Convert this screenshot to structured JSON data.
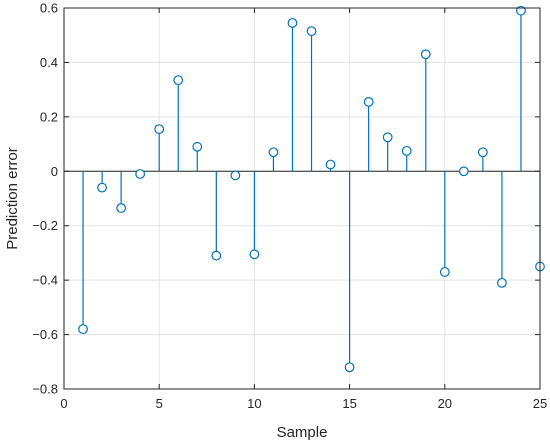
{
  "chart_data": {
    "type": "stem",
    "xlabel": "Sample",
    "ylabel": "Prediction error",
    "xlim": [
      0,
      25
    ],
    "ylim": [
      -0.8,
      0.6
    ],
    "grid": true,
    "xticks": [
      0,
      5,
      10,
      15,
      20,
      25
    ],
    "xtick_labels": [
      "0",
      "5",
      "10",
      "15",
      "20",
      "25"
    ],
    "yticks": [
      -0.8,
      -0.6,
      -0.4,
      -0.2,
      0,
      0.2,
      0.4,
      0.6
    ],
    "ytick_labels": [
      "−0.8",
      "−0.6",
      "−0.4",
      "−0.2",
      "0",
      "0.2",
      "0.4",
      "0.6"
    ],
    "color": "#0072BD",
    "x": [
      1,
      2,
      3,
      4,
      5,
      6,
      7,
      8,
      9,
      10,
      11,
      12,
      13,
      14,
      15,
      16,
      17,
      18,
      19,
      20,
      21,
      22,
      23,
      24,
      25
    ],
    "y": [
      -0.58,
      -0.06,
      -0.135,
      -0.01,
      0.155,
      0.335,
      0.09,
      -0.31,
      -0.015,
      -0.305,
      0.07,
      0.545,
      0.515,
      0.025,
      -0.72,
      0.255,
      0.125,
      0.075,
      0.43,
      -0.37,
      0.0,
      0.07,
      -0.41,
      0.59,
      -0.35
    ]
  }
}
